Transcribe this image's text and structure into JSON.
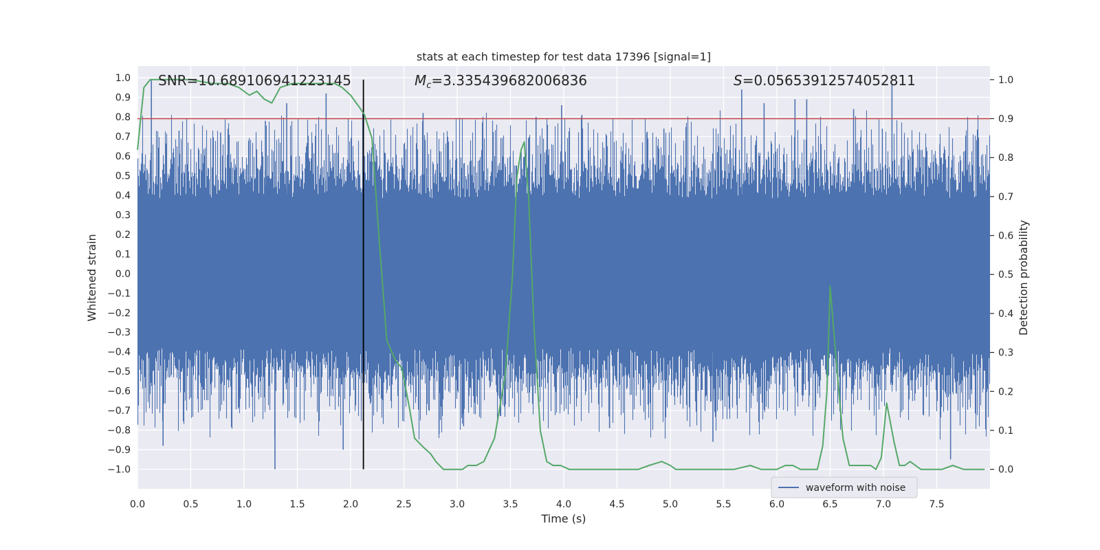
{
  "chart_data": {
    "type": "line",
    "title": "stats at each timestep for test data 17396 [signal=1]",
    "xlabel": "Time (s)",
    "ylabel_left": "Whitened strain",
    "ylabel_right": "Detection probability",
    "xlim": [
      0.0,
      8.0
    ],
    "ylim_left": [
      -1.1,
      1.06
    ],
    "ylim_right": [
      -0.05,
      1.035
    ],
    "x_ticks": [
      0.0,
      0.5,
      1.0,
      1.5,
      2.0,
      2.5,
      3.0,
      3.5,
      4.0,
      4.5,
      5.0,
      5.5,
      6.0,
      6.5,
      7.0,
      7.5
    ],
    "x_tick_labels": [
      "0.0",
      "0.5",
      "1.0",
      "1.5",
      "2.0",
      "2.5",
      "3.0",
      "3.5",
      "4.0",
      "4.5",
      "5.0",
      "5.5",
      "6.0",
      "6.5",
      "7.0",
      "7.5"
    ],
    "y_ticks_left": [
      1.0,
      0.9,
      0.8,
      0.7,
      0.6,
      0.5,
      0.4,
      0.3,
      0.2,
      0.1,
      0.0,
      -0.1,
      -0.2,
      -0.3,
      -0.4,
      -0.5,
      -0.6,
      -0.7,
      -0.8,
      -0.9,
      -1.0
    ],
    "y_tick_labels_left": [
      "1.0",
      "0.9",
      "0.8",
      "0.7",
      "0.6",
      "0.5",
      "0.4",
      "0.3",
      "0.2",
      "0.1",
      "0.0",
      "−0.1",
      "−0.2",
      "−0.3",
      "−0.4",
      "−0.5",
      "−0.6",
      "−0.7",
      "−0.8",
      "−0.9",
      "−1.0"
    ],
    "y_ticks_right": [
      1.0,
      0.9,
      0.8,
      0.7,
      0.6,
      0.5,
      0.4,
      0.3,
      0.2,
      0.1,
      0.0
    ],
    "y_tick_labels_right": [
      "1.0",
      "0.9",
      "0.8",
      "0.7",
      "0.6",
      "0.5",
      "0.4",
      "0.3",
      "0.2",
      "0.1",
      "0.0"
    ],
    "grid": true,
    "annotations": {
      "snr": "SNR=10.689106941223145",
      "mc_prefix": "M",
      "mc_sub": "c",
      "mc_value": "=3.335439682006836",
      "s_prefix": "S",
      "s_value": "=0.05653912574052811"
    },
    "threshold_line": {
      "y_right": 0.9,
      "color": "#c44e52"
    },
    "event_line": {
      "x": 2.12,
      "color": "#000000"
    },
    "waveform": {
      "name": "waveform with noise",
      "color": "#4c72b0",
      "spikes": [
        {
          "x": 0.13,
          "y": 0.99
        },
        {
          "x": 0.24,
          "y": -0.88
        },
        {
          "x": 0.39,
          "y": 0.73
        },
        {
          "x": 0.78,
          "y": 0.72
        },
        {
          "x": 1.2,
          "y": 0.78
        },
        {
          "x": 1.29,
          "y": -1.0
        },
        {
          "x": 1.4,
          "y": 0.87
        },
        {
          "x": 1.77,
          "y": 0.92
        },
        {
          "x": 1.93,
          "y": -0.9
        },
        {
          "x": 2.68,
          "y": 0.82
        },
        {
          "x": 2.83,
          "y": -0.82
        },
        {
          "x": 3.6,
          "y": 0.62
        },
        {
          "x": 3.74,
          "y": 0.8
        },
        {
          "x": 3.98,
          "y": 0.86
        },
        {
          "x": 4.17,
          "y": 0.81
        },
        {
          "x": 4.43,
          "y": -0.79
        },
        {
          "x": 4.94,
          "y": 0.74
        },
        {
          "x": 5.4,
          "y": -0.86
        },
        {
          "x": 5.67,
          "y": 0.94
        },
        {
          "x": 6.17,
          "y": 0.89
        },
        {
          "x": 6.28,
          "y": 0.89
        },
        {
          "x": 6.99,
          "y": 0.74
        },
        {
          "x": 7.08,
          "y": 0.97
        },
        {
          "x": 7.63,
          "y": -0.95
        },
        {
          "x": 7.53,
          "y": 0.66
        },
        {
          "x": 5.88,
          "y": 0.87
        },
        {
          "x": 6.72,
          "y": 0.84
        },
        {
          "x": 3.06,
          "y": -0.78
        }
      ]
    },
    "probability": {
      "color": "#55a868",
      "x": [
        0.0,
        0.06,
        0.12,
        0.3,
        0.5,
        0.7,
        0.85,
        0.95,
        1.05,
        1.12,
        1.19,
        1.26,
        1.34,
        1.45,
        1.6,
        1.75,
        1.85,
        1.92,
        2.0,
        2.08,
        2.13,
        2.2,
        2.27,
        2.34,
        2.42,
        2.48,
        2.55,
        2.6,
        2.67,
        2.75,
        2.8,
        2.87,
        2.95,
        3.05,
        3.1,
        3.18,
        3.25,
        3.35,
        3.45,
        3.52,
        3.56,
        3.6,
        3.63,
        3.67,
        3.72,
        3.78,
        3.84,
        3.9,
        3.97,
        4.05,
        4.15,
        4.3,
        4.5,
        4.7,
        4.8,
        4.92,
        5.0,
        5.05,
        5.15,
        5.4,
        5.6,
        5.75,
        5.85,
        6.0,
        6.08,
        6.15,
        6.22,
        6.3,
        6.38,
        6.43,
        6.47,
        6.5,
        6.55,
        6.62,
        6.68,
        6.76,
        6.82,
        6.88,
        6.93,
        6.98,
        7.03,
        7.1,
        7.15,
        7.2,
        7.25,
        7.35,
        7.45,
        7.55,
        7.65,
        7.75,
        7.87,
        7.95
      ],
      "y": [
        0.82,
        0.98,
        1.0,
        1.0,
        1.0,
        0.99,
        0.99,
        0.98,
        0.96,
        0.97,
        0.95,
        0.94,
        0.98,
        0.99,
        0.99,
        0.99,
        0.99,
        0.98,
        0.96,
        0.93,
        0.91,
        0.85,
        0.58,
        0.33,
        0.28,
        0.26,
        0.16,
        0.08,
        0.06,
        0.04,
        0.02,
        0.0,
        0.0,
        0.0,
        0.01,
        0.01,
        0.02,
        0.08,
        0.24,
        0.5,
        0.75,
        0.82,
        0.84,
        0.7,
        0.37,
        0.1,
        0.02,
        0.01,
        0.01,
        0.0,
        0.0,
        0.0,
        0.0,
        0.0,
        0.01,
        0.02,
        0.01,
        0.0,
        0.0,
        0.0,
        0.0,
        0.01,
        0.0,
        0.0,
        0.01,
        0.01,
        0.0,
        0.0,
        0.0,
        0.06,
        0.2,
        0.47,
        0.3,
        0.08,
        0.01,
        0.01,
        0.01,
        0.01,
        0.0,
        0.03,
        0.17,
        0.07,
        0.01,
        0.01,
        0.02,
        0.0,
        0.0,
        0.0,
        0.01,
        0.0,
        0.0,
        0.0
      ]
    },
    "legend": {
      "placement": "bottom-right",
      "entries": [
        "waveform with noise"
      ]
    }
  }
}
